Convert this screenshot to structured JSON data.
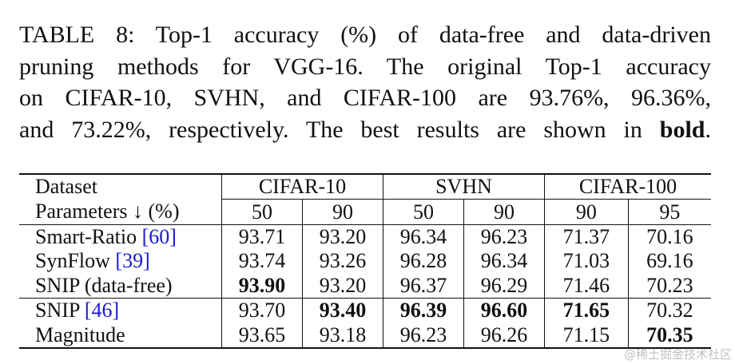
{
  "caption": {
    "lines": [
      "TABLE 8: Top-1 accuracy (%) of data-free and data-driven",
      "pruning methods for VGG-16. The original Top-1 accuracy",
      "on CIFAR-10, SVHN, and CIFAR-100 are 93.76%, 96.36%,"
    ],
    "last_line": [
      "and 73.22%, respectively. The best results are shown in ",
      "bold",
      "."
    ]
  },
  "table": {
    "header": {
      "dataset": "Dataset",
      "groups": [
        "CIFAR-10",
        "SVHN",
        "CIFAR-100"
      ],
      "parameters": "Parameters ↓ (%)",
      "columns": [
        "50",
        "90",
        "50",
        "90",
        "90",
        "95"
      ]
    },
    "rows": [
      {
        "method": "Smart-Ratio",
        "cite": "[60]",
        "values": [
          "93.71",
          "93.20",
          "96.34",
          "96.23",
          "71.37",
          "70.16"
        ]
      },
      {
        "method": "SynFlow",
        "cite": "[39]",
        "values": [
          "93.74",
          "93.26",
          "96.28",
          "96.34",
          "71.03",
          "69.16"
        ]
      },
      {
        "method": "SNIP (data-free)",
        "values": [
          "93.90",
          "93.20",
          "96.37",
          "96.29",
          "71.46",
          "70.23"
        ]
      },
      {
        "method": "SNIP",
        "cite": "[46]",
        "values": [
          "93.70",
          "93.40",
          "96.39",
          "96.60",
          "71.65",
          "70.32"
        ]
      },
      {
        "method": "Magnitude",
        "values": [
          "93.65",
          "93.18",
          "96.23",
          "96.26",
          "71.15",
          "70.35"
        ]
      }
    ]
  },
  "watermark": "@稀土掘金技术社区"
}
